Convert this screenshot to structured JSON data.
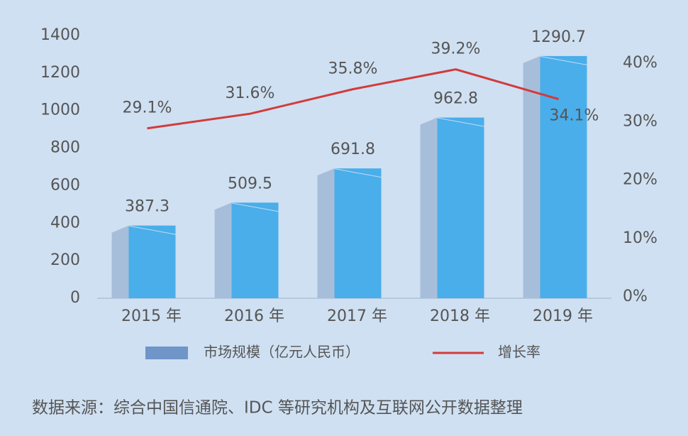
{
  "chart_data": {
    "type": "bar",
    "categories": [
      "2015 年",
      "2016 年",
      "2017 年",
      "2018 年",
      "2019 年"
    ],
    "series": [
      {
        "name": "市场规模（亿元人民币）",
        "color": "#49aeea",
        "values": [
          387.3,
          509.5,
          691.8,
          962.8,
          1290.7
        ]
      },
      {
        "name": "增长率",
        "type": "line",
        "axis": "y2",
        "color": "#d23b3b",
        "values": [
          29.1,
          31.6,
          35.8,
          39.2,
          34.1
        ],
        "value_labels": [
          "29.1%",
          "31.6%",
          "35.8%",
          "39.2%",
          "34.1%"
        ]
      }
    ],
    "ylim": [
      0,
      1400
    ],
    "yticks": [
      0,
      200,
      400,
      600,
      800,
      1000,
      1200,
      1400
    ],
    "y2lim": [
      0,
      45
    ],
    "y2ticks": [
      {
        "value": 0,
        "label": "0%"
      },
      {
        "value": 10,
        "label": "10%"
      },
      {
        "value": 20,
        "label": "20%"
      },
      {
        "value": 30,
        "label": "30%"
      },
      {
        "value": 40,
        "label": "40%"
      }
    ],
    "legend": "bottom",
    "source": "数据来源：综合中国信通院、IDC 等研究机构及互联网公开数据整理"
  }
}
